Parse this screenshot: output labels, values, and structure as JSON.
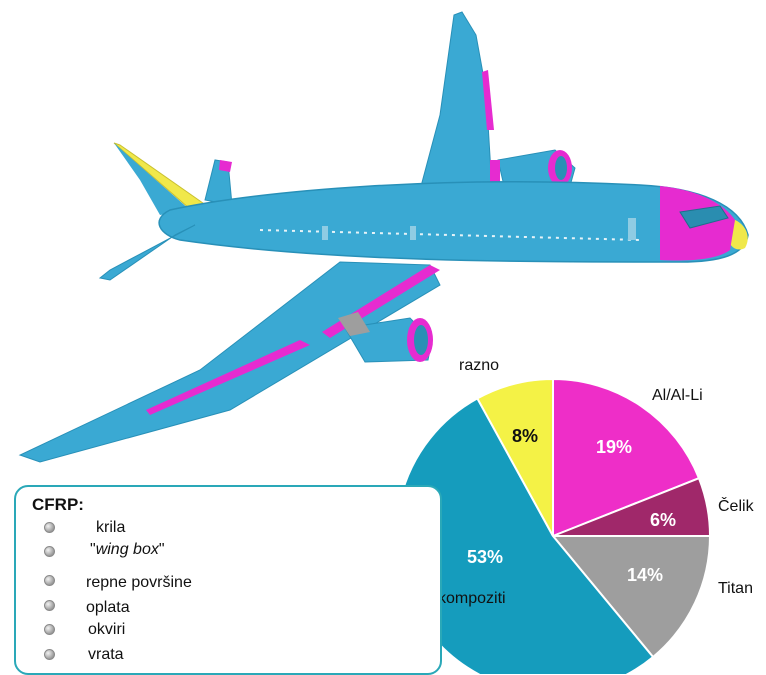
{
  "chart_data": {
    "type": "pie",
    "slices": [
      {
        "label": "Al/Al-Li",
        "value": 19,
        "display": "19%",
        "color": "#ee2ec8"
      },
      {
        "label": "Čelik",
        "value": 6,
        "display": "6%",
        "color": "#a0286a"
      },
      {
        "label": "Titan",
        "value": 14,
        "display": "14%",
        "color": "#9e9e9e"
      },
      {
        "label": "kompoziti",
        "value": 53,
        "display": "53%",
        "color": "#159cbd"
      },
      {
        "label": "razno",
        "value": 8,
        "display": "8%",
        "color": "#f4f246"
      }
    ]
  },
  "cfrp": {
    "title": "CFRP:",
    "items": [
      {
        "text": "krila"
      },
      {
        "pre": "\"",
        "italic": "wing box",
        "post": "\""
      },
      {
        "text": "repne površine"
      },
      {
        "text": "oplata"
      },
      {
        "text": "okviri"
      },
      {
        "text": "vrata"
      }
    ]
  },
  "colors": {
    "composite": "#33a8d0",
    "aluminium": "#ee2ec8",
    "other": "#f0e84a",
    "titanium": "#9e9e9e",
    "box_border": "#2aa8b8"
  },
  "icons": {
    "illustration": "airliner-icon",
    "bullet": "round-bullet-icon"
  }
}
